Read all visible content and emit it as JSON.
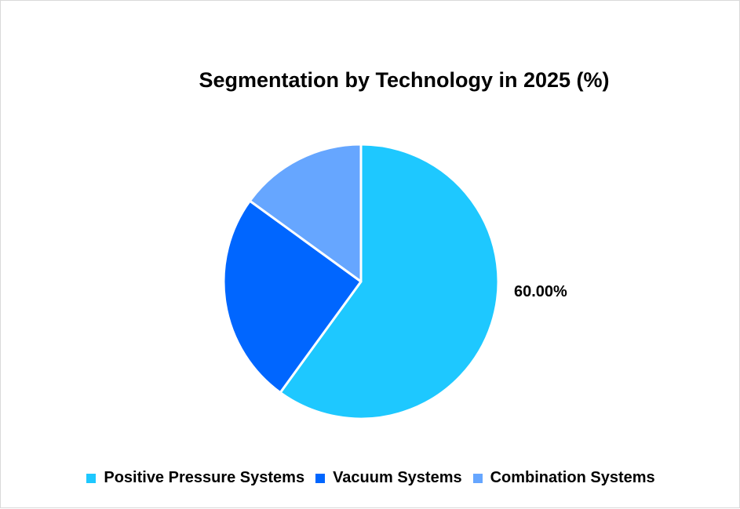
{
  "chart_data": {
    "type": "pie",
    "title": "Segmentation by Technology in 2025 (%)",
    "categories": [
      "Positive Pressure Systems",
      "Vacuum Systems",
      "Combination Systems"
    ],
    "values": [
      60,
      25,
      15
    ],
    "colors": [
      "#1ec8ff",
      "#0066ff",
      "#66a6ff"
    ],
    "data_labels": [
      "60.00%",
      "",
      ""
    ],
    "legend_position": "bottom"
  }
}
